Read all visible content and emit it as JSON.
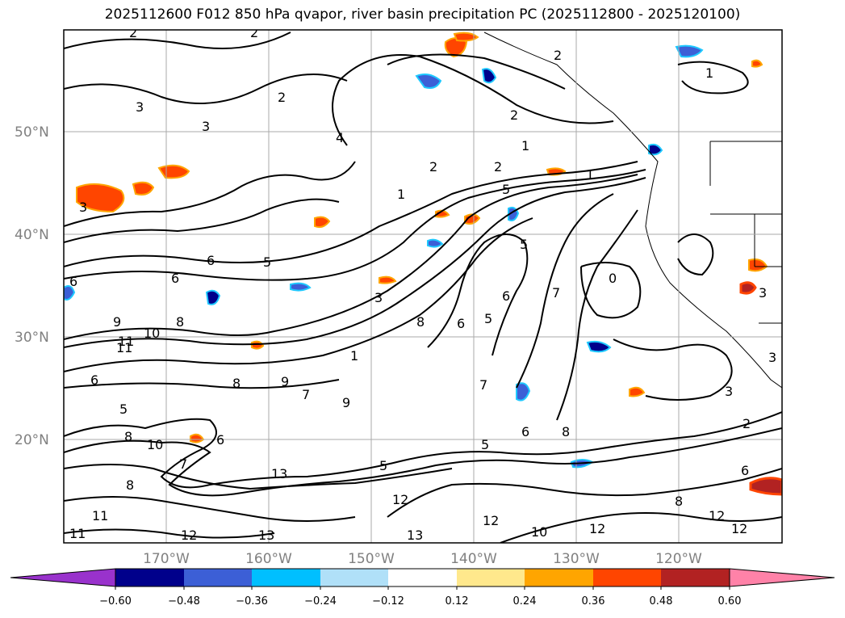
{
  "title": "2025112600 F012 850 hPa qvapor, river basin precipitation PC (2025112800 - 2025120100)",
  "map": {
    "lat_labels": [
      "50°N",
      "40°N",
      "30°N",
      "20°N"
    ],
    "lon_labels": [
      "170°W",
      "160°W",
      "150°W",
      "140°W",
      "130°W",
      "120°W"
    ],
    "gridlines": true,
    "contour_labels": [
      "2",
      "2",
      "3",
      "2",
      "3",
      "4",
      "2",
      "1",
      "2",
      "2",
      "1",
      "1",
      "3",
      "1",
      "2",
      "5",
      "6",
      "6",
      "5",
      "6",
      "5",
      "6",
      "9",
      "7",
      "3",
      "8",
      "6",
      "5",
      "1",
      "0",
      "3",
      "8",
      "7",
      "10",
      "11",
      "9",
      "8",
      "6",
      "5",
      "5",
      "8",
      "6",
      "10",
      "8",
      "6",
      "7",
      "7",
      "2",
      "3",
      "3",
      "5",
      "9",
      "11",
      "12",
      "12",
      "13",
      "12",
      "10",
      "12",
      "11",
      "13",
      "11",
      "8",
      "12",
      "13",
      "12",
      "6",
      "8"
    ],
    "contour_line_color": "#000000",
    "fill_colors": {
      "negative_strong": "#00008b",
      "negative_mid": "#3c5fd6",
      "negative_light": "#1ec8ff",
      "positive_light": "#ffa500",
      "positive_mid": "#ff4500",
      "positive_strong": "#b22222"
    }
  },
  "colorbar": {
    "tick_labels": [
      "−0.60",
      "−0.48",
      "−0.36",
      "−0.24",
      "−0.12",
      "0.12",
      "0.24",
      "0.36",
      "0.48",
      "0.60"
    ],
    "bins": [
      {
        "color": "#9932cc"
      },
      {
        "color": "#00008b"
      },
      {
        "color": "#3c5fd6"
      },
      {
        "color": "#00bfff"
      },
      {
        "color": "#b0e0f8"
      },
      {
        "color": "#ffffff"
      },
      {
        "color": "#ffe88c"
      },
      {
        "color": "#ffa500"
      },
      {
        "color": "#ff4500"
      },
      {
        "color": "#b22222"
      },
      {
        "color": "#ff82a8"
      }
    ]
  }
}
